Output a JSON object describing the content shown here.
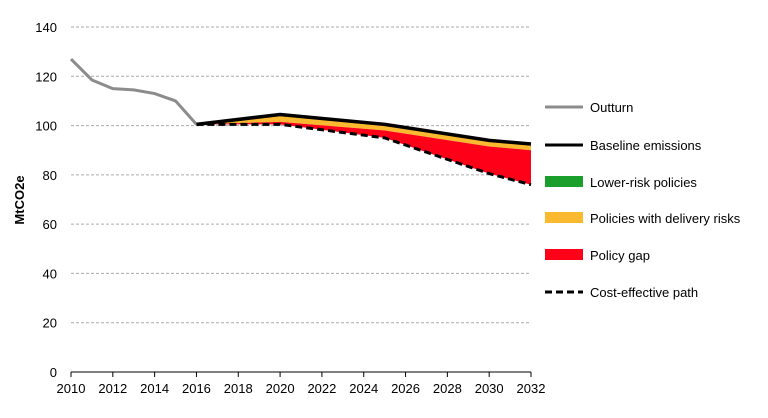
{
  "chart_data": {
    "type": "area",
    "ylabel": "MtCO2e",
    "xlim": [
      2010,
      2032
    ],
    "ylim": [
      0,
      140
    ],
    "xticks": [
      2010,
      2012,
      2014,
      2016,
      2018,
      2020,
      2022,
      2024,
      2026,
      2028,
      2030,
      2032
    ],
    "yticks": [
      0,
      20,
      40,
      60,
      80,
      100,
      120,
      140
    ],
    "grid": true,
    "legend_position": "right",
    "series": [
      {
        "name": "Outturn",
        "color": "#8c8c8c",
        "style": "line",
        "x": [
          2010,
          2011,
          2012,
          2013,
          2014,
          2015,
          2016
        ],
        "y": [
          127,
          118.5,
          115,
          114.5,
          113,
          110,
          100.5
        ]
      },
      {
        "name": "Baseline emissions",
        "color": "#000000",
        "style": "line",
        "x": [
          2016,
          2020,
          2025,
          2030,
          2032
        ],
        "y": [
          100.5,
          104.5,
          100.5,
          94,
          92.5
        ]
      },
      {
        "name": "Lower-risk policies",
        "color": "#1a9e2c",
        "style": "band",
        "x": [
          2016,
          2020,
          2025,
          2030,
          2032
        ],
        "y": [
          100.5,
          104,
          100,
          93.5,
          92
        ]
      },
      {
        "name": "Policies with delivery risks",
        "color": "#fbb92f",
        "style": "band",
        "x": [
          2016,
          2020,
          2025,
          2030,
          2032
        ],
        "y": [
          100.5,
          101.5,
          98,
          91.5,
          90
        ]
      },
      {
        "name": "Policy gap",
        "color": "#ff0019",
        "style": "band",
        "x": [
          2016,
          2020,
          2025,
          2030,
          2032
        ],
        "y": [
          100.5,
          100.5,
          95,
          80.5,
          76
        ]
      },
      {
        "name": "Cost-effective path",
        "color": "#000000",
        "style": "dashed",
        "x": [
          2016,
          2020,
          2025,
          2030,
          2032
        ],
        "y": [
          100.5,
          100.5,
          95,
          80.5,
          76
        ]
      }
    ]
  }
}
